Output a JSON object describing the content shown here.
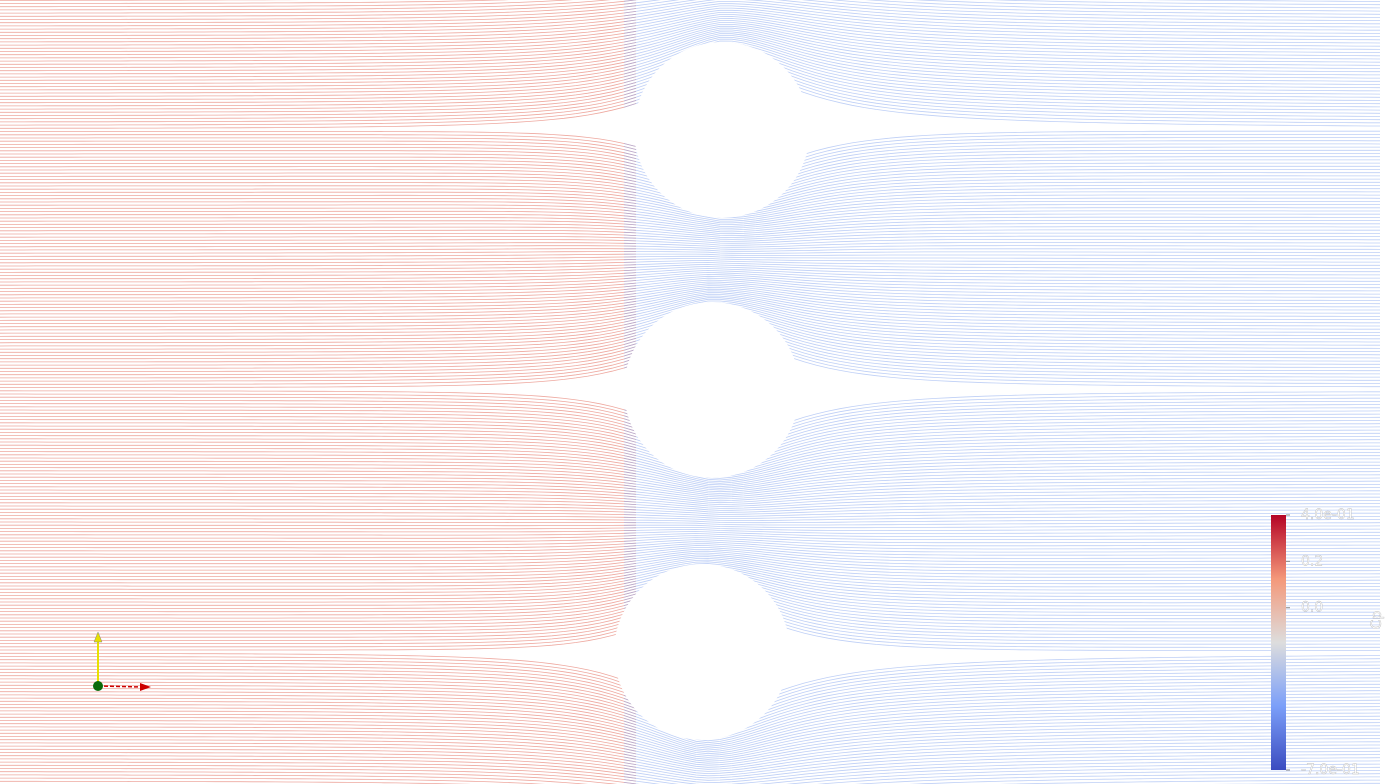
{
  "colorbar": {
    "title": "Cp",
    "lim": [
      -0.7,
      0.4
    ],
    "ticks": [
      {
        "value": 0.4,
        "label": "4.0e-01"
      },
      0.2,
      {
        "value": 0,
        "label": "0.0"
      },
      {
        "value": -0.7,
        "label": "-7.0e-01"
      }
    ]
  }
}
